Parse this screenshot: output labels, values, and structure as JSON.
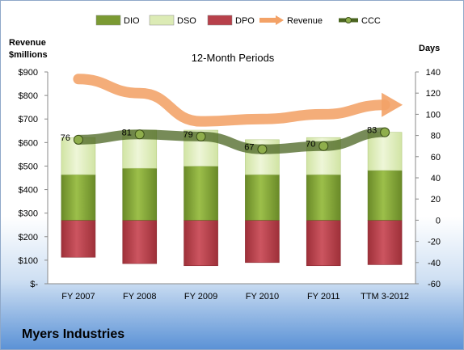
{
  "company": "Myers Industries",
  "chart_data": {
    "type": "bar",
    "title": "12-Month Periods",
    "categories": [
      "FY 2007",
      "FY 2008",
      "FY 2009",
      "FY 2010",
      "FY 2011",
      "TTM 3-2012"
    ],
    "left_axis": {
      "label_line1": "Revenue",
      "label_line2": "$millions",
      "range": [
        0,
        900
      ],
      "ticks": [
        "$-",
        "$100",
        "$200",
        "$300",
        "$400",
        "$500",
        "$600",
        "$700",
        "$800",
        "$900"
      ]
    },
    "right_axis": {
      "label": "Days",
      "range": [
        -60,
        140
      ],
      "ticks": [
        "-60",
        "-40",
        "-20",
        "0",
        "20",
        "40",
        "60",
        "80",
        "100",
        "120",
        "140"
      ]
    },
    "legend": [
      "DIO",
      "DSO",
      "DPO",
      "Revenue",
      "CCC"
    ],
    "legend_position": "top",
    "series": [
      {
        "name": "DIO",
        "axis": "right",
        "values": [
          43,
          49,
          51,
          43,
          43,
          47
        ]
      },
      {
        "name": "DSO",
        "axis": "right",
        "values": [
          35,
          36,
          34,
          33,
          35,
          36
        ]
      },
      {
        "name": "DPO",
        "axis": "right",
        "values": [
          -35,
          -41,
          -43,
          -40,
          -43,
          -42
        ]
      },
      {
        "name": "Revenue",
        "axis": "left",
        "values": [
          870,
          810,
          690,
          700,
          720,
          760
        ]
      },
      {
        "name": "CCC",
        "axis": "right",
        "values": [
          76,
          81,
          79,
          67,
          70,
          83
        ],
        "labels": [
          "76",
          "81",
          "79",
          "67",
          "70",
          "83"
        ]
      }
    ],
    "colors": {
      "DIO": "#7b9a33",
      "DSO": "#dcebb5",
      "DPO": "#b7404a",
      "Revenue": "#f3a267",
      "CCC": "#4a6420"
    }
  }
}
